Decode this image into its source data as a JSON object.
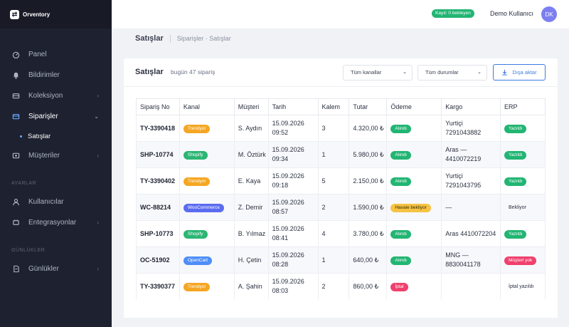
{
  "brand": {
    "logo": "⇄",
    "name": "Orventory"
  },
  "sidebar": {
    "items": [
      {
        "label": "Panel",
        "icon": "dashboard-icon",
        "chevron": ""
      },
      {
        "label": "Bildirimler",
        "icon": "bell-icon",
        "chevron": ""
      },
      {
        "label": "Koleksiyon",
        "icon": "box-icon",
        "chevron": "›"
      },
      {
        "label": "Siparişler",
        "icon": "cart-icon",
        "chevron": "⌄"
      }
    ],
    "sub_item": "Satışlar",
    "items2": [
      {
        "label": "Müşteriler",
        "icon": "users-icon",
        "chevron": "›"
      }
    ],
    "section_ayarlar": "AYARLAR",
    "ayarlar_items": [
      {
        "label": "Kullanıcılar",
        "icon": "user-icon",
        "chevron": ""
      },
      {
        "label": "Entegrasyonlar",
        "icon": "plug-icon",
        "chevron": "›"
      }
    ],
    "section_gunlukler": "GÜNLÜKLER",
    "gunluk_items": [
      {
        "label": "Günlükler",
        "icon": "log-icon",
        "chevron": "›"
      }
    ]
  },
  "topbar": {
    "status": "Kayıt: 0 bekleyen",
    "user_name": "Demo Kullanıcı",
    "avatar": "DK"
  },
  "breadcrumb": {
    "title": "Satışlar",
    "path": "Siparişler · Satışlar"
  },
  "card": {
    "title": "Satışlar",
    "subtitle": "bugün 47 sipariş",
    "filter_channel": "Tüm kanallar",
    "filter_status": "Tüm durumlar",
    "export_label": "Dışa aktar"
  },
  "colors": {
    "trendyol": "#f5a623",
    "shopify": "#2bb673",
    "woocommerce": "#5b6cf0",
    "opencart": "#4f8ef7",
    "green": "#22b573",
    "yellow": "#f6c343",
    "red": "#f0406d"
  },
  "table": {
    "headers": [
      "Sipariş No",
      "Kanal",
      "Müşteri",
      "Tarih",
      "Kalem",
      "Tutar",
      "Ödeme",
      "Kargo",
      "ERP"
    ],
    "rows": [
      {
        "no": "TY-3390418",
        "channel": "Trendyol",
        "ccolor": "trendyol",
        "customer": "S. Aydın",
        "date": "15.09.2026 09:52",
        "qty": "3",
        "amount": "4.320,00 ₺",
        "pay": "Alındı",
        "pcolor": "green",
        "cargo": "Yurtiçi 7291043882",
        "erp": "Yazıldı",
        "ecolor": "green"
      },
      {
        "no": "SHP-10774",
        "channel": "Shopify",
        "ccolor": "shopify",
        "customer": "M. Öztürk",
        "date": "15.09.2026 09:34",
        "qty": "1",
        "amount": "5.980,00 ₺",
        "pay": "Alındı",
        "pcolor": "green",
        "cargo": "Aras — 4410072219",
        "erp": "Yazıldı",
        "ecolor": "green"
      },
      {
        "no": "TY-3390402",
        "channel": "Trendyol",
        "ccolor": "trendyol",
        "customer": "E. Kaya",
        "date": "15.09.2026 09:18",
        "qty": "5",
        "amount": "2.150,00 ₺",
        "pay": "Alındı",
        "pcolor": "green",
        "cargo": "Yurtiçi 7291043795",
        "erp": "Yazıldı",
        "ecolor": "green"
      },
      {
        "no": "WC-88214",
        "channel": "WooCommerce",
        "ccolor": "woocommerce",
        "customer": "Z. Demir",
        "date": "15.09.2026 08:57",
        "qty": "2",
        "amount": "1.590,00 ₺",
        "pay": "Havale bekliyor",
        "pcolor": "yellow",
        "cargo": "—",
        "erp": "Bekliyor",
        "ecolor": ""
      },
      {
        "no": "SHP-10773",
        "channel": "Shopify",
        "ccolor": "shopify",
        "customer": "B. Yılmaz",
        "date": "15.09.2026 08:41",
        "qty": "4",
        "amount": "3.780,00 ₺",
        "pay": "Alındı",
        "pcolor": "green",
        "cargo": "Aras 4410072204",
        "erp": "Yazıldı",
        "ecolor": "green"
      },
      {
        "no": "OC-51902",
        "channel": "OpenCart",
        "ccolor": "opencart",
        "customer": "H. Çetin",
        "date": "15.09.2026 08:28",
        "qty": "1",
        "amount": "640,00 ₺",
        "pay": "Alındı",
        "pcolor": "green",
        "cargo": "MNG — 8830041178",
        "erp": "Müşteri yok",
        "ecolor": "red"
      },
      {
        "no": "TY-3390377",
        "channel": "Trendyol",
        "ccolor": "trendyol",
        "customer": "A. Şahin",
        "date": "15.09.2026 08:03",
        "qty": "2",
        "amount": "860,00 ₺",
        "pay": "İptal",
        "pcolor": "red",
        "cargo": "",
        "erp": "İptal yazıldı",
        "ecolor": ""
      }
    ]
  }
}
